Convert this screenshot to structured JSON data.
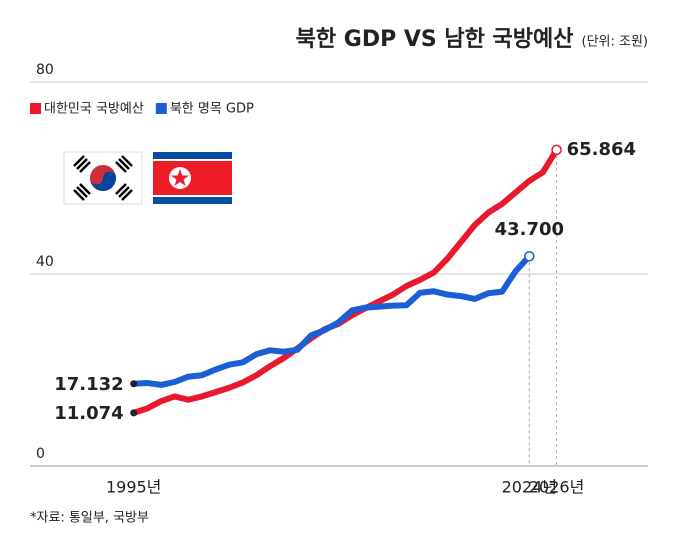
{
  "chart_data": {
    "type": "line",
    "title": "북한 GDP VS 남한 국방예산",
    "subtitle": "(단위: 조원)",
    "source": "*자료: 통일부, 국방부",
    "x": [
      1995,
      1996,
      1997,
      1998,
      1999,
      2000,
      2001,
      2002,
      2003,
      2004,
      2005,
      2006,
      2007,
      2008,
      2009,
      2010,
      2011,
      2012,
      2013,
      2014,
      2015,
      2016,
      2017,
      2018,
      2019,
      2020,
      2021,
      2022,
      2023,
      2024,
      2025,
      2026
    ],
    "series": [
      {
        "name": "대한민국 국방예산",
        "color": "#e8192c",
        "values": [
          11.074,
          12,
          13.5,
          14.5,
          13.8,
          14.5,
          15.4,
          16.3,
          17.4,
          18.9,
          20.8,
          22.5,
          24.5,
          26.6,
          28.5,
          29.6,
          31.4,
          32.9,
          34.3,
          35.7,
          37.5,
          38.8,
          40.3,
          43.2,
          46.7,
          50.2,
          52.8,
          54.6,
          57.0,
          59.4,
          61.2,
          65.864
        ],
        "value_labels": [
          "11.074",
          null,
          null,
          null,
          null,
          null,
          null,
          null,
          null,
          null,
          null,
          null,
          null,
          null,
          null,
          null,
          null,
          null,
          null,
          null,
          null,
          null,
          null,
          null,
          null,
          null,
          null,
          null,
          null,
          null,
          null,
          "65.864"
        ]
      },
      {
        "name": "북한 명목 GDP",
        "color": "#1a5fd6",
        "values": [
          17.132,
          17.3,
          16.9,
          17.5,
          18.6,
          18.9,
          20.1,
          21.1,
          21.6,
          23.3,
          24.1,
          23.8,
          24.2,
          27.2,
          28.3,
          29.9,
          32.4,
          33.0,
          33.2,
          33.4,
          33.5,
          36.1,
          36.4,
          35.7,
          35.4,
          34.8,
          36.0,
          36.3,
          40.6,
          43.7,
          null,
          null
        ],
        "value_labels": [
          "17.132",
          null,
          null,
          null,
          null,
          null,
          null,
          null,
          null,
          null,
          null,
          null,
          null,
          null,
          null,
          null,
          null,
          null,
          null,
          null,
          null,
          null,
          null,
          null,
          null,
          null,
          null,
          null,
          null,
          "43.700",
          null,
          null
        ]
      }
    ],
    "xlim": [
      1987.4,
      2032.7
    ],
    "xticks": [
      {
        "value": 1995,
        "label": "1995년"
      },
      {
        "value": 2024,
        "label": "2024년"
      },
      {
        "value": 2026,
        "label": "2026년"
      }
    ],
    "ylim": [
      0,
      80
    ],
    "yticks": [
      0,
      40,
      80
    ],
    "grid": true
  }
}
